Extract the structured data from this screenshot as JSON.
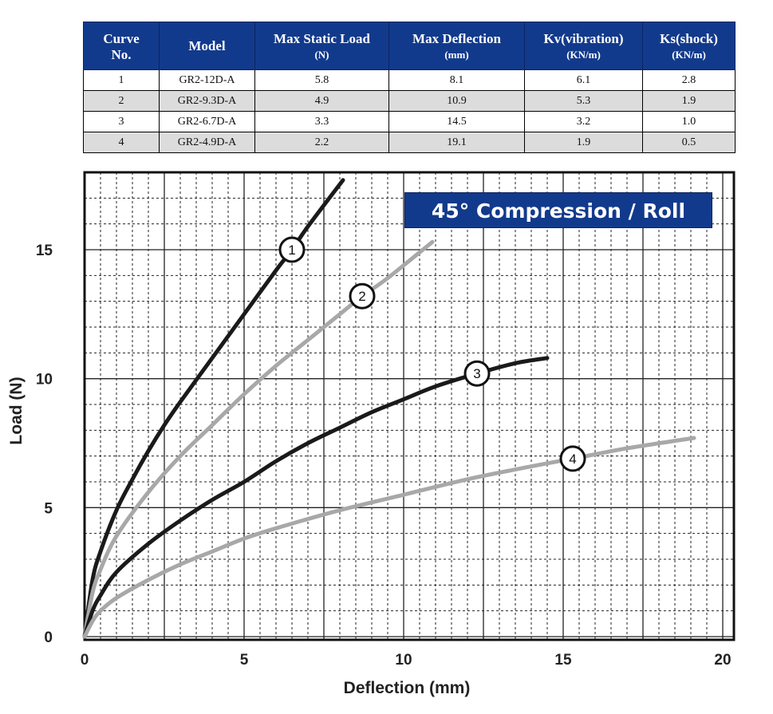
{
  "table": {
    "headers": [
      {
        "title": "Curve",
        "unit": "No."
      },
      {
        "title": "Model",
        "unit": ""
      },
      {
        "title": "Max Static Load",
        "unit": "(N)"
      },
      {
        "title": "Max Deflection",
        "unit": "(mm)"
      },
      {
        "title": "Kv(vibration)",
        "unit": "(KN/m)"
      },
      {
        "title": "Ks(shock)",
        "unit": "(KN/m)"
      }
    ],
    "rows": [
      [
        "1",
        "GR2-12D-A",
        "5.8",
        "8.1",
        "6.1",
        "2.8"
      ],
      [
        "2",
        "GR2-9.3D-A",
        "4.9",
        "10.9",
        "5.3",
        "1.9"
      ],
      [
        "3",
        "GR2-6.7D-A",
        "3.3",
        "14.5",
        "3.2",
        "1.0"
      ],
      [
        "4",
        "GR2-4.9D-A",
        "2.2",
        "19.1",
        "1.9",
        "0.5"
      ]
    ]
  },
  "chart_data": {
    "type": "line",
    "title": "45° Compression / Roll",
    "xlabel": "Deflection (mm)",
    "ylabel": "Load (N)",
    "xlim": [
      0,
      20
    ],
    "ylim": [
      0,
      18
    ],
    "xticks": [
      "0",
      "5",
      "10",
      "15",
      "20"
    ],
    "yticks": [
      "0",
      "5",
      "10",
      "15"
    ],
    "grid": true,
    "series": [
      {
        "name": "1",
        "color": "#1a1a1a",
        "x": [
          0,
          0.25,
          0.5,
          1,
          1.5,
          2,
          2.5,
          3,
          4,
          5,
          6,
          6.5,
          7,
          8.1
        ],
        "y": [
          0,
          2.2,
          3.3,
          4.9,
          6.1,
          7.2,
          8.2,
          9.1,
          10.8,
          12.5,
          14.2,
          15.0,
          15.9,
          17.7
        ]
      },
      {
        "name": "2",
        "color": "#a8a8a8",
        "x": [
          0,
          0.25,
          0.5,
          1,
          2,
          3,
          4,
          5,
          6,
          7,
          8,
          8.7,
          9.5,
          10.9
        ],
        "y": [
          0,
          1.7,
          2.6,
          3.9,
          5.6,
          7.0,
          8.2,
          9.4,
          10.5,
          11.5,
          12.5,
          13.2,
          13.9,
          15.3
        ]
      },
      {
        "name": "3",
        "color": "#1a1a1a",
        "x": [
          0,
          0.25,
          0.5,
          1,
          2,
          3,
          4,
          5,
          6,
          7,
          8,
          9,
          10,
          11,
          12.3,
          13.5,
          14.5
        ],
        "y": [
          0,
          1.0,
          1.6,
          2.5,
          3.6,
          4.5,
          5.3,
          6.0,
          6.8,
          7.5,
          8.1,
          8.7,
          9.2,
          9.7,
          10.2,
          10.6,
          10.8
        ]
      },
      {
        "name": "4",
        "color": "#a8a8a8",
        "x": [
          0,
          0.25,
          0.5,
          1,
          2,
          3,
          4,
          5,
          6,
          8,
          10,
          12,
          14,
          15.3,
          17,
          19.1
        ],
        "y": [
          0,
          0.6,
          1.0,
          1.5,
          2.2,
          2.8,
          3.3,
          3.8,
          4.2,
          4.9,
          5.5,
          6.1,
          6.6,
          6.9,
          7.3,
          7.7
        ]
      }
    ],
    "markers": [
      {
        "label": "1",
        "x": 6.5,
        "y": 15.0
      },
      {
        "label": "2",
        "x": 8.7,
        "y": 13.2
      },
      {
        "label": "3",
        "x": 12.3,
        "y": 10.2
      },
      {
        "label": "4",
        "x": 15.3,
        "y": 6.9
      }
    ]
  }
}
